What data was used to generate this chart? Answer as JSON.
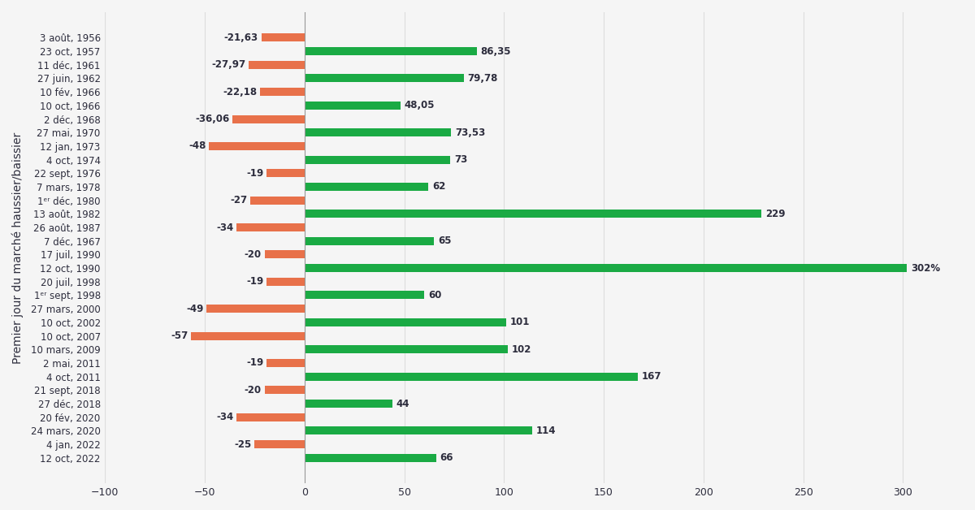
{
  "pairs": [
    {
      "bear_label": "3 août, 1956",
      "bear_val": -21.63,
      "bull_label": "23 oct, 1957",
      "bull_val": 86.35
    },
    {
      "bear_label": "11 déc, 1961",
      "bear_val": -27.97,
      "bull_label": "27 juin, 1962",
      "bull_val": 79.78
    },
    {
      "bear_label": "10 fév, 1966",
      "bear_val": -22.18,
      "bull_label": "10 oct, 1966",
      "bull_val": 48.05
    },
    {
      "bear_label": "2 déc, 1968",
      "bear_val": -36.06,
      "bull_label": "27 mai, 1970",
      "bull_val": 73.53
    },
    {
      "bear_label": "12 jan, 1973",
      "bear_val": -48,
      "bull_label": "4 oct, 1974",
      "bull_val": 73
    },
    {
      "bear_label": "22 sept, 1976",
      "bear_val": -19,
      "bull_label": "7 mars, 1978",
      "bull_val": 62
    },
    {
      "bear_label": "1ᵉʳ déc, 1980",
      "bear_val": -27,
      "bull_label": "13 août, 1982",
      "bull_val": 229
    },
    {
      "bear_label": "26 août, 1987",
      "bear_val": -34,
      "bull_label": "7 déc, 1967",
      "bull_val": 65
    },
    {
      "bear_label": "17 juil, 1990",
      "bear_val": -20,
      "bull_label": "12 oct, 1990",
      "bull_val": 302
    },
    {
      "bear_label": "20 juil, 1998",
      "bear_val": -19,
      "bull_label": "1ᵉʳ sept, 1998",
      "bull_val": 60
    },
    {
      "bear_label": "27 mars, 2000",
      "bear_val": -49,
      "bull_label": "10 oct, 2002",
      "bull_val": 101
    },
    {
      "bear_label": "10 oct, 2007",
      "bear_val": -57,
      "bull_label": "10 mars, 2009",
      "bull_val": 102
    },
    {
      "bear_label": "2 mai, 2011",
      "bear_val": -19,
      "bull_label": "4 oct, 2011",
      "bull_val": 167
    },
    {
      "bear_label": "21 sept, 2018",
      "bear_val": -20,
      "bull_label": "27 déc, 2018",
      "bull_val": 44
    },
    {
      "bear_label": "20 fév, 2020",
      "bear_val": -34,
      "bull_label": "24 mars, 2020",
      "bull_val": 114
    },
    {
      "bear_label": "4 jan, 2022",
      "bear_val": -25,
      "bull_label": "12 oct, 2022",
      "bull_val": 66
    }
  ],
  "bear_color": "#E8714A",
  "bull_color": "#1AAA44",
  "background_color": "#F5F5F5",
  "grid_color": "#DDDDDD",
  "text_color": "#2d2d3d",
  "ylabel": "Premier jour du marché haussier/baissier",
  "xlim": [
    -100,
    330
  ],
  "xticks": [
    -100,
    -50,
    0,
    50,
    100,
    150,
    200,
    250,
    300
  ],
  "bar_height": 0.6,
  "special_bull_val": 302,
  "special_bull_label": "302%"
}
